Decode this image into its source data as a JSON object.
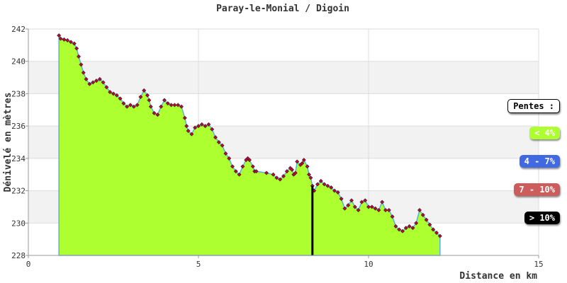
{
  "chart_data": {
    "type": "area",
    "title": "Paray-le-Monial / Digoin",
    "xlabel": "Distance en km",
    "ylabel": "Dénivelé en mètres",
    "xlim": [
      0,
      15
    ],
    "ylim": [
      228,
      242
    ],
    "xticks": [
      "0",
      "5",
      "10",
      "15"
    ],
    "yticks": [
      "228",
      "230",
      "232",
      "234",
      "236",
      "238",
      "240",
      "242"
    ],
    "grid": true,
    "fill_color": "#adff2f",
    "outline_color": "#5aaee0",
    "marker_color": "#cc0033",
    "cursor_x": 8.35,
    "x": [
      0.9,
      0.95,
      1.05,
      1.15,
      1.25,
      1.35,
      1.42,
      1.48,
      1.55,
      1.62,
      1.7,
      1.8,
      1.9,
      2.0,
      2.1,
      2.2,
      2.3,
      2.4,
      2.5,
      2.6,
      2.7,
      2.8,
      2.9,
      3.0,
      3.1,
      3.2,
      3.3,
      3.4,
      3.5,
      3.55,
      3.6,
      3.7,
      3.8,
      3.9,
      4.0,
      4.1,
      4.2,
      4.3,
      4.4,
      4.5,
      4.6,
      4.65,
      4.7,
      4.8,
      4.9,
      5.0,
      5.1,
      5.2,
      5.3,
      5.4,
      5.5,
      5.6,
      5.7,
      5.8,
      5.9,
      6.0,
      6.1,
      6.2,
      6.3,
      6.4,
      6.45,
      6.5,
      6.6,
      6.65,
      6.7,
      7.0,
      7.2,
      7.3,
      7.4,
      7.5,
      7.6,
      7.7,
      7.75,
      7.8,
      7.85,
      7.9,
      8.0,
      8.05,
      8.1,
      8.2,
      8.25,
      8.3,
      8.35,
      8.4,
      8.5,
      8.6,
      8.7,
      8.8,
      8.9,
      9.0,
      9.1,
      9.2,
      9.3,
      9.4,
      9.5,
      9.6,
      9.7,
      9.8,
      9.9,
      10.0,
      10.1,
      10.2,
      10.3,
      10.4,
      10.5,
      10.6,
      10.7,
      10.8,
      10.9,
      11.0,
      11.1,
      11.2,
      11.3,
      11.4,
      11.5,
      11.6,
      11.7,
      11.8,
      11.9,
      12.0,
      12.1
    ],
    "y": [
      241.6,
      241.4,
      241.35,
      241.3,
      241.2,
      241.1,
      240.8,
      240.3,
      239.8,
      239.3,
      238.9,
      238.6,
      238.7,
      238.8,
      238.9,
      238.7,
      238.4,
      238.1,
      238.0,
      237.9,
      237.7,
      237.4,
      237.2,
      237.3,
      237.2,
      237.3,
      237.8,
      238.2,
      237.9,
      237.6,
      237.2,
      236.8,
      236.7,
      237.2,
      237.6,
      237.4,
      237.3,
      237.3,
      237.3,
      237.2,
      236.5,
      236.0,
      235.7,
      235.5,
      235.9,
      236.0,
      236.1,
      236.0,
      236.1,
      235.8,
      235.3,
      235.0,
      234.8,
      234.3,
      234.0,
      233.5,
      233.2,
      233.0,
      233.5,
      233.9,
      234.0,
      233.9,
      233.5,
      233.2,
      233.2,
      233.1,
      233.0,
      232.8,
      232.7,
      232.9,
      233.2,
      233.4,
      233.3,
      233.0,
      233.1,
      233.8,
      233.6,
      233.7,
      233.9,
      233.5,
      233.0,
      232.8,
      232.3,
      232.0,
      232.4,
      232.6,
      232.4,
      232.3,
      232.2,
      232.0,
      231.9,
      231.5,
      230.9,
      231.1,
      231.4,
      231.0,
      230.8,
      231.3,
      231.4,
      231.0,
      231.0,
      230.9,
      230.8,
      231.3,
      230.8,
      230.8,
      230.4,
      229.8,
      229.6,
      229.5,
      229.7,
      229.8,
      229.7,
      230.0,
      230.8,
      230.5,
      230.2,
      229.9,
      229.6,
      229.4,
      229.2
    ]
  },
  "legend": {
    "title": "Pentes :",
    "items": [
      {
        "label": "< 4%",
        "bg": "#adff2f",
        "fg": "#ffffff"
      },
      {
        "label": "4 - 7%",
        "bg": "#4169e1",
        "fg": "#ffffff"
      },
      {
        "label": "7 - 10%",
        "bg": "#cd5c5c",
        "fg": "#ffffff"
      },
      {
        "label": "> 10%",
        "bg": "#000000",
        "fg": "#ffffff"
      }
    ]
  }
}
